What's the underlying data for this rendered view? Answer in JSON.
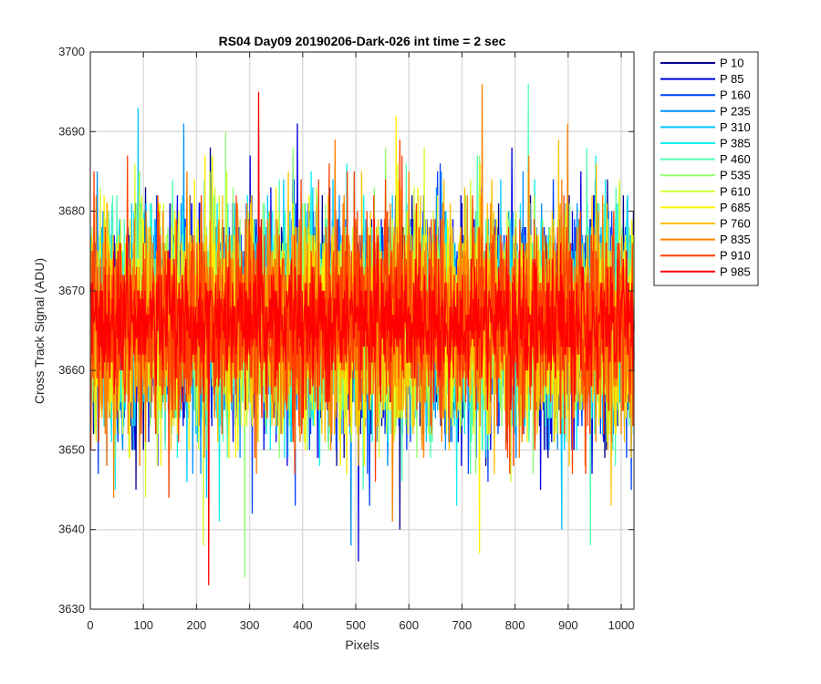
{
  "chart_data": {
    "type": "line",
    "title": "RS04 Day09 20190206-Dark-026 int time = 2 sec",
    "xlabel": "Pixels",
    "ylabel": "Cross Track Signal (ADU)",
    "xlim": [
      0,
      1024
    ],
    "ylim": [
      3630,
      3700
    ],
    "xticks": [
      0,
      100,
      200,
      300,
      400,
      500,
      600,
      700,
      800,
      900,
      1000
    ],
    "yticks": [
      3630,
      3640,
      3650,
      3660,
      3670,
      3680,
      3690,
      3700
    ],
    "x": "pixel index 1 to 1024 for every series",
    "grid": true,
    "legend_position": "outside-right-top",
    "series": [
      {
        "name": "P 10",
        "color": "#00008F",
        "mean": 3666,
        "range": [
          3640,
          3688
        ]
      },
      {
        "name": "P 85",
        "color": "#0000E0",
        "mean": 3666,
        "range": [
          3636,
          3691
        ]
      },
      {
        "name": "P 160",
        "color": "#0040FF",
        "mean": 3666,
        "range": [
          3642,
          3687
        ]
      },
      {
        "name": "P 235",
        "color": "#0090FF",
        "mean": 3666,
        "range": [
          3638,
          3691
        ]
      },
      {
        "name": "P 310",
        "color": "#00C8FF",
        "mean": 3666,
        "range": [
          3640,
          3693
        ]
      },
      {
        "name": "P 385",
        "color": "#10F0F0",
        "mean": 3666,
        "range": [
          3641,
          3687
        ]
      },
      {
        "name": "P 460",
        "color": "#50FFB0",
        "mean": 3666,
        "range": [
          3638,
          3696
        ]
      },
      {
        "name": "P 535",
        "color": "#90FF70",
        "mean": 3666,
        "range": [
          3634,
          3690
        ]
      },
      {
        "name": "P 610",
        "color": "#D0FF30",
        "mean": 3666,
        "range": [
          3638,
          3688
        ]
      },
      {
        "name": "P 685",
        "color": "#FFF000",
        "mean": 3666,
        "range": [
          3637,
          3692
        ]
      },
      {
        "name": "P 760",
        "color": "#FFC000",
        "mean": 3666,
        "range": [
          3643,
          3689
        ]
      },
      {
        "name": "P 835",
        "color": "#FF8000",
        "mean": 3666,
        "range": [
          3641,
          3696
        ]
      },
      {
        "name": "P 910",
        "color": "#FF4000",
        "mean": 3666,
        "range": [
          3644,
          3689
        ]
      },
      {
        "name": "P 985",
        "color": "#FF0000",
        "mean": 3666,
        "range": [
          3633,
          3695
        ]
      }
    ]
  }
}
